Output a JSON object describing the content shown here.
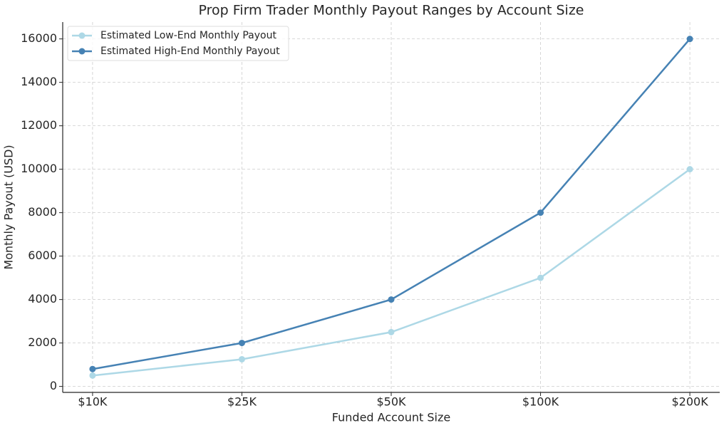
{
  "chart_data": {
    "type": "line",
    "title": "Prop Firm Trader Monthly Payout Ranges by Account Size",
    "x_label": "Funded Account Size",
    "y_label": "Monthly Payout (USD)",
    "categories": [
      "$10K",
      "$25K",
      "$50K",
      "$100K",
      "$200K"
    ],
    "series": [
      {
        "name": "Estimated Low-End Monthly Payout",
        "color": "#add8e6",
        "values": [
          500,
          1250,
          2500,
          5000,
          10000
        ]
      },
      {
        "name": "Estimated High-End Monthly Payout",
        "color": "#4682b4",
        "values": [
          800,
          2000,
          4000,
          8000,
          16000
        ]
      }
    ],
    "ylim": [
      -275,
      16775
    ],
    "yticks": [
      0,
      2000,
      4000,
      6000,
      8000,
      10000,
      12000,
      14000,
      16000
    ],
    "grid": true,
    "legend": "upper-left"
  }
}
